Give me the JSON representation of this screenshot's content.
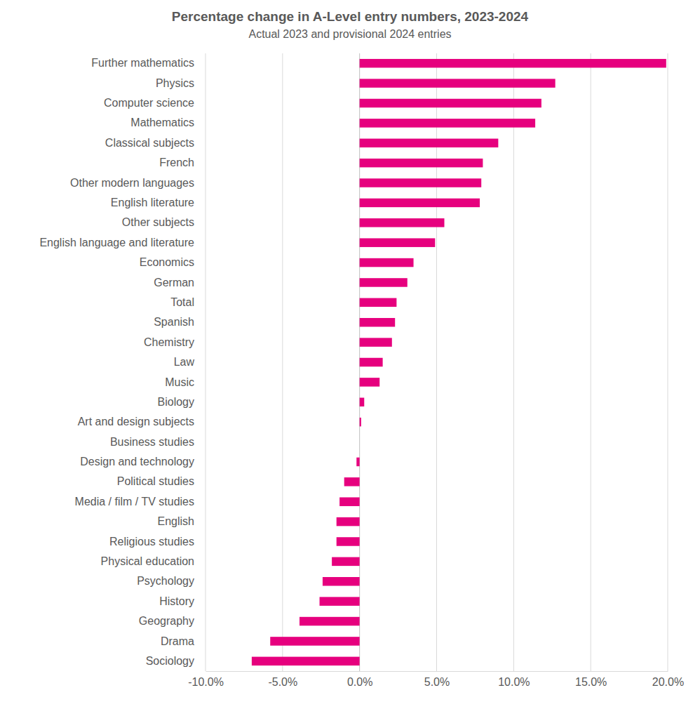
{
  "chart_data": {
    "type": "bar",
    "title": "Percentage change in A-Level entry numbers, 2023-2024",
    "subtitle": "Actual 2023 and provisional 2024 entries",
    "orientation": "horizontal",
    "categories": [
      "Further mathematics",
      "Physics",
      "Computer science",
      "Mathematics",
      "Classical subjects",
      "French",
      "Other modern languages",
      "English literature",
      "Other subjects",
      "English language and literature",
      "Economics",
      "German",
      "Total",
      "Spanish",
      "Chemistry",
      "Law",
      "Music",
      "Biology",
      "Art and design subjects",
      "Business studies",
      "Design and technology",
      "Political studies",
      "Media / film / TV studies",
      "English",
      "Religious studies",
      "Physical education",
      "Psychology",
      "History",
      "Geography",
      "Drama",
      "Sociology"
    ],
    "values": [
      19.9,
      12.7,
      11.8,
      11.4,
      9.0,
      8.0,
      7.9,
      7.8,
      5.5,
      4.9,
      3.5,
      3.1,
      2.4,
      2.3,
      2.1,
      1.5,
      1.3,
      0.3,
      0.1,
      0.0,
      -0.2,
      -1.0,
      -1.3,
      -1.5,
      -1.5,
      -1.8,
      -2.4,
      -2.6,
      -3.9,
      -5.8,
      -7.0
    ],
    "color": "#e6007e",
    "xlim": [
      -10,
      20
    ],
    "xticks": [
      {
        "value": -10,
        "label": "-10.0%"
      },
      {
        "value": -5,
        "label": "-5.0%"
      },
      {
        "value": 0,
        "label": "0.0%"
      },
      {
        "value": 5,
        "label": "5.0%"
      },
      {
        "value": 10,
        "label": "10.0%"
      },
      {
        "value": 15,
        "label": "15.0%"
      },
      {
        "value": 20,
        "label": "20.0%"
      }
    ],
    "grid": true
  }
}
